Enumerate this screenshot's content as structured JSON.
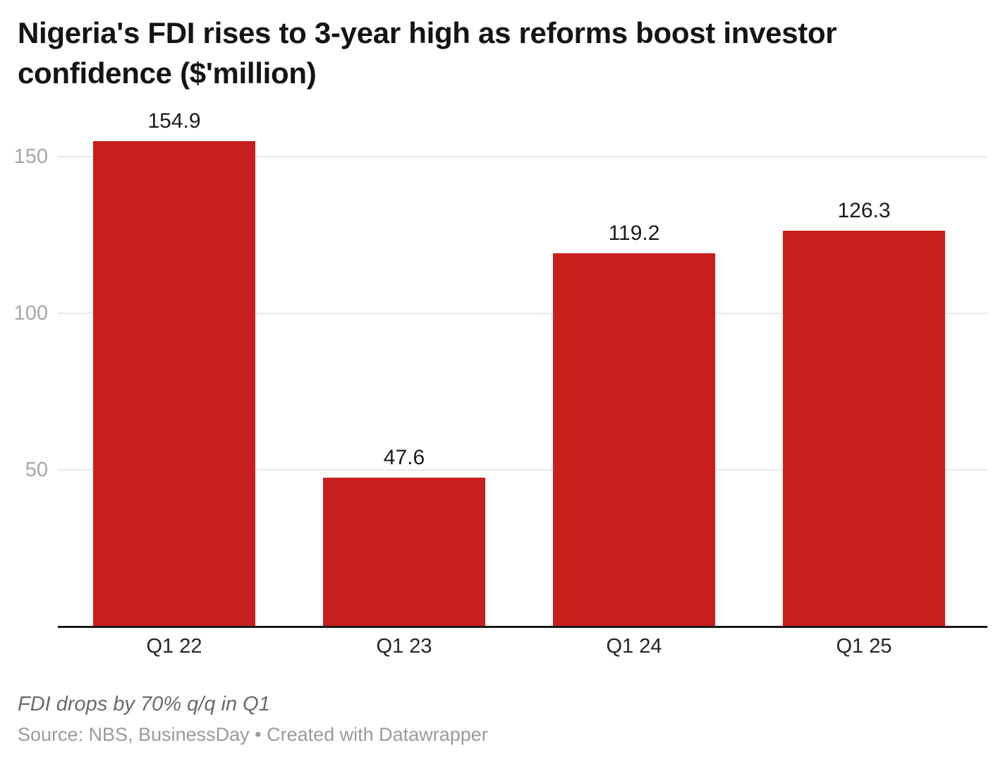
{
  "title": "Nigeria's FDI rises to 3-year high as reforms boost investor confidence ($'million)",
  "footer": {
    "note": "FDI drops by 70% q/q in Q1",
    "source": "Source: NBS, BusinessDay • Created with Datawrapper"
  },
  "colors": {
    "bar": "#c71f1d",
    "axis_line": "#1a1a1a",
    "gridline": "#e9e9e9",
    "tick_label": "#a6a6a6",
    "value_label": "#1c1c1c",
    "category_label": "#262626",
    "note_text": "#6a6a6a",
    "source_text": "#9b9b9b"
  },
  "chart_data": {
    "type": "bar",
    "title": "Nigeria's FDI rises to 3-year high as reforms boost investor confidence ($'million)",
    "categories": [
      "Q1 22",
      "Q1 23",
      "Q1 24",
      "Q1 25"
    ],
    "values": [
      154.9,
      47.6,
      119.2,
      126.3
    ],
    "value_labels": [
      "154.9",
      "47.6",
      "119.2",
      "126.3"
    ],
    "xlabel": "",
    "ylabel": "",
    "yticks": [
      50,
      100,
      150
    ],
    "ylim": [
      0,
      160
    ],
    "grid": true,
    "legend": false,
    "bar_color": "#c71f1d",
    "annotation": "FDI drops by 70% q/q in Q1",
    "source": "Source: NBS, BusinessDay • Created with Datawrapper"
  }
}
